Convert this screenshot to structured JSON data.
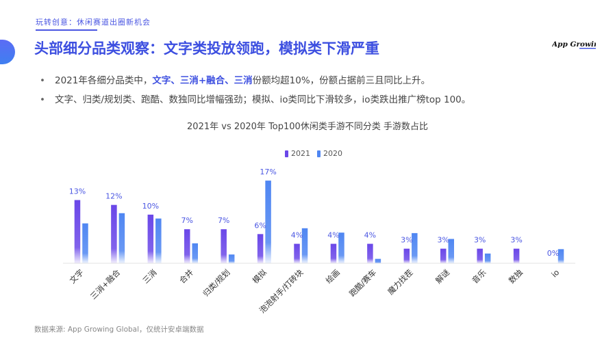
{
  "header": {
    "breadcrumb": "玩转创意：休闲赛道出圈新机会",
    "title": "头部细分品类观察：文字类投放领跑，模拟类下滑严重",
    "logo_text": "App Growing"
  },
  "bullets": [
    {
      "parts": [
        {
          "text": "2021年各细分品类中，",
          "highlight": false
        },
        {
          "text": "文字、三消+融合、三消",
          "highlight": true
        },
        {
          "text": "份额均超10%，份额占据前三且同比上升。",
          "highlight": false
        }
      ]
    },
    {
      "parts": [
        {
          "text": "文字、归类/规划类、跑酷、数独同比增幅强劲；模拟、io类同比下滑较多，io类跌出推广榜top 100。",
          "highlight": false
        }
      ]
    }
  ],
  "colors": {
    "accent": "#3d4fe0",
    "series_2021": "#6a47e8",
    "series_2020": "#4f86f2",
    "axis": "#e3e3e3"
  },
  "chart_data": {
    "type": "bar",
    "title": "2021年 vs 2020年 Top100休闲类手游不同分类 手游数占比",
    "categories": [
      "文字",
      "三消+融合",
      "三消",
      "合并",
      "归类/规划",
      "模拟",
      "泡泡射手/打砖块",
      "绘画",
      "跑酷/赛车",
      "魔力找茬",
      "解谜",
      "音乐",
      "数独",
      "io"
    ],
    "series": [
      {
        "name": "2021",
        "values": [
          13,
          12,
          10,
          7,
          7,
          6,
          4,
          4,
          4,
          3,
          3,
          3,
          3,
          0
        ]
      },
      {
        "name": "2020",
        "values": [
          8.2,
          10.3,
          9.2,
          4.1,
          1.8,
          17,
          7.2,
          6.3,
          0.9,
          6.2,
          5.0,
          2.0,
          0,
          2.9
        ]
      }
    ],
    "data_labels_2021": [
      "13%",
      "12%",
      "10%",
      "7%",
      "7%",
      "6%",
      "4%",
      "4%",
      "4%",
      "3%",
      "3%",
      "3%",
      "3%",
      "0%"
    ],
    "data_label_2020_max": "17%",
    "ylim": [
      0,
      18
    ],
    "legend_position": "top-center"
  },
  "footer": {
    "source": "数据来源: App Growing Global，仅统计安卓端数据"
  }
}
